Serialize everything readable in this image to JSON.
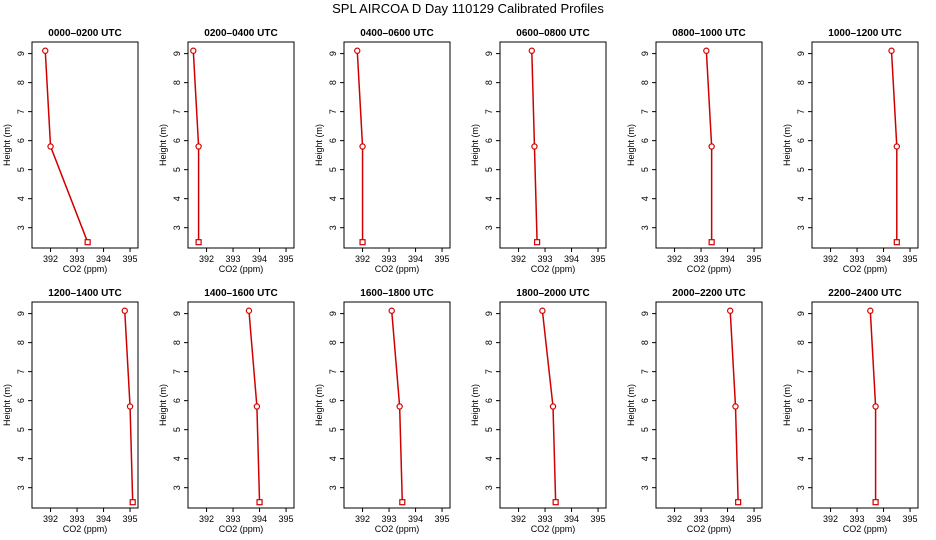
{
  "title": "SPL AIRCOA D  Day 110129  Calibrated Profiles",
  "colors": {
    "line": "#d00000",
    "axis": "#000000",
    "background": "#ffffff"
  },
  "chart_data": [
    {
      "type": "line",
      "title": "0000–0200 UTC",
      "xlabel": "CO2 (ppm)",
      "ylabel": "Height (m)",
      "xlim": [
        391.3,
        395.3
      ],
      "ylim": [
        2.3,
        9.4
      ],
      "xticks": [
        392,
        393,
        394,
        395
      ],
      "yticks": [
        3,
        4,
        5,
        6,
        7,
        8,
        9
      ],
      "x": [
        391.8,
        392.0,
        393.4
      ],
      "y": [
        9.1,
        5.8,
        2.5
      ]
    },
    {
      "type": "line",
      "title": "0200–0400 UTC",
      "xlabel": "CO2 (ppm)",
      "ylabel": "Height (m)",
      "xlim": [
        391.3,
        395.3
      ],
      "ylim": [
        2.3,
        9.4
      ],
      "xticks": [
        392,
        393,
        394,
        395
      ],
      "yticks": [
        3,
        4,
        5,
        6,
        7,
        8,
        9
      ],
      "x": [
        391.5,
        391.7,
        391.7
      ],
      "y": [
        9.1,
        5.8,
        2.5
      ]
    },
    {
      "type": "line",
      "title": "0400–0600 UTC",
      "xlabel": "CO2 (ppm)",
      "ylabel": "Height (m)",
      "xlim": [
        391.3,
        395.3
      ],
      "ylim": [
        2.3,
        9.4
      ],
      "xticks": [
        392,
        393,
        394,
        395
      ],
      "yticks": [
        3,
        4,
        5,
        6,
        7,
        8,
        9
      ],
      "x": [
        391.8,
        392.0,
        392.0
      ],
      "y": [
        9.1,
        5.8,
        2.5
      ]
    },
    {
      "type": "line",
      "title": "0600–0800 UTC",
      "xlabel": "CO2 (ppm)",
      "ylabel": "Height (m)",
      "xlim": [
        391.3,
        395.3
      ],
      "ylim": [
        2.3,
        9.4
      ],
      "xticks": [
        392,
        393,
        394,
        395
      ],
      "yticks": [
        3,
        4,
        5,
        6,
        7,
        8,
        9
      ],
      "x": [
        392.5,
        392.6,
        392.7
      ],
      "y": [
        9.1,
        5.8,
        2.5
      ]
    },
    {
      "type": "line",
      "title": "0800–1000 UTC",
      "xlabel": "CO2 (ppm)",
      "ylabel": "Height (m)",
      "xlim": [
        391.3,
        395.3
      ],
      "ylim": [
        2.3,
        9.4
      ],
      "xticks": [
        392,
        393,
        394,
        395
      ],
      "yticks": [
        3,
        4,
        5,
        6,
        7,
        8,
        9
      ],
      "x": [
        393.2,
        393.4,
        393.4
      ],
      "y": [
        9.1,
        5.8,
        2.5
      ]
    },
    {
      "type": "line",
      "title": "1000–1200 UTC",
      "xlabel": "CO2 (ppm)",
      "ylabel": "Height (m)",
      "xlim": [
        391.3,
        395.3
      ],
      "ylim": [
        2.3,
        9.4
      ],
      "xticks": [
        392,
        393,
        394,
        395
      ],
      "yticks": [
        3,
        4,
        5,
        6,
        7,
        8,
        9
      ],
      "x": [
        394.3,
        394.5,
        394.5
      ],
      "y": [
        9.1,
        5.8,
        2.5
      ]
    },
    {
      "type": "line",
      "title": "1200–1400 UTC",
      "xlabel": "CO2 (ppm)",
      "ylabel": "Height (m)",
      "xlim": [
        391.3,
        395.3
      ],
      "ylim": [
        2.3,
        9.4
      ],
      "xticks": [
        392,
        393,
        394,
        395
      ],
      "yticks": [
        3,
        4,
        5,
        6,
        7,
        8,
        9
      ],
      "x": [
        394.8,
        395.0,
        395.1
      ],
      "y": [
        9.1,
        5.8,
        2.5
      ]
    },
    {
      "type": "line",
      "title": "1400–1600 UTC",
      "xlabel": "CO2 (ppm)",
      "ylabel": "Height (m)",
      "xlim": [
        391.3,
        395.3
      ],
      "ylim": [
        2.3,
        9.4
      ],
      "xticks": [
        392,
        393,
        394,
        395
      ],
      "yticks": [
        3,
        4,
        5,
        6,
        7,
        8,
        9
      ],
      "x": [
        393.6,
        393.9,
        394.0
      ],
      "y": [
        9.1,
        5.8,
        2.5
      ]
    },
    {
      "type": "line",
      "title": "1600–1800 UTC",
      "xlabel": "CO2 (ppm)",
      "ylabel": "Height (m)",
      "xlim": [
        391.3,
        395.3
      ],
      "ylim": [
        2.3,
        9.4
      ],
      "xticks": [
        392,
        393,
        394,
        395
      ],
      "yticks": [
        3,
        4,
        5,
        6,
        7,
        8,
        9
      ],
      "x": [
        393.1,
        393.4,
        393.5
      ],
      "y": [
        9.1,
        5.8,
        2.5
      ]
    },
    {
      "type": "line",
      "title": "1800–2000 UTC",
      "xlabel": "CO2 (ppm)",
      "ylabel": "Height (m)",
      "xlim": [
        391.3,
        395.3
      ],
      "ylim": [
        2.3,
        9.4
      ],
      "xticks": [
        392,
        393,
        394,
        395
      ],
      "yticks": [
        3,
        4,
        5,
        6,
        7,
        8,
        9
      ],
      "x": [
        392.9,
        393.3,
        393.4
      ],
      "y": [
        9.1,
        5.8,
        2.5
      ]
    },
    {
      "type": "line",
      "title": "2000–2200 UTC",
      "xlabel": "CO2 (ppm)",
      "ylabel": "Height (m)",
      "xlim": [
        391.3,
        395.3
      ],
      "ylim": [
        2.3,
        9.4
      ],
      "xticks": [
        392,
        393,
        394,
        395
      ],
      "yticks": [
        3,
        4,
        5,
        6,
        7,
        8,
        9
      ],
      "x": [
        394.1,
        394.3,
        394.4
      ],
      "y": [
        9.1,
        5.8,
        2.5
      ]
    },
    {
      "type": "line",
      "title": "2200–2400 UTC",
      "xlabel": "CO2 (ppm)",
      "ylabel": "Height (m)",
      "xlim": [
        391.3,
        395.3
      ],
      "ylim": [
        2.3,
        9.4
      ],
      "xticks": [
        392,
        393,
        394,
        395
      ],
      "yticks": [
        3,
        4,
        5,
        6,
        7,
        8,
        9
      ],
      "x": [
        393.5,
        393.7,
        393.7
      ],
      "y": [
        9.1,
        5.8,
        2.5
      ]
    }
  ]
}
